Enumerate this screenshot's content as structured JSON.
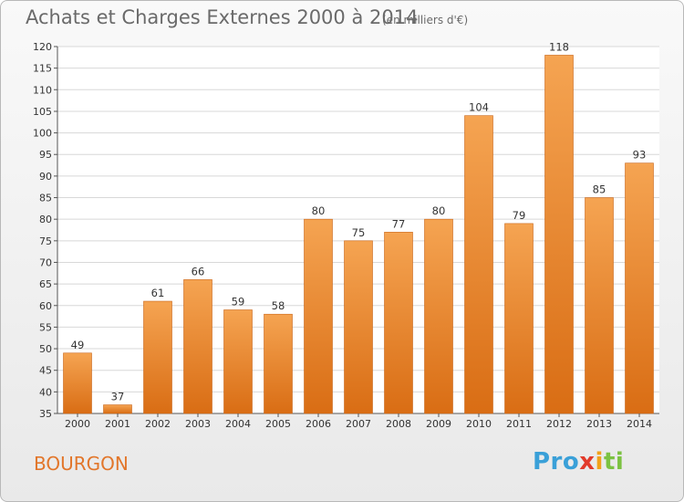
{
  "header": {
    "title": "Achats et Charges Externes 2000 à 2014",
    "unit": "(en milliers d'€)"
  },
  "footer": {
    "commune": "BOURGON",
    "logo": [
      "Pro",
      "x",
      "i",
      "ti"
    ]
  },
  "colors": {
    "bar_top": "#f5a452",
    "bar_bottom": "#d96d14",
    "title": "#6a6a6a",
    "commune": "#e2762a",
    "grid": "#d8d8d8"
  },
  "chart_data": {
    "type": "bar",
    "title": "Achats et Charges Externes 2000 à 2014",
    "subtitle": "(en milliers d'€)",
    "xlabel": "",
    "ylabel": "",
    "categories": [
      "2000",
      "2001",
      "2002",
      "2003",
      "2004",
      "2005",
      "2006",
      "2007",
      "2008",
      "2009",
      "2010",
      "2011",
      "2012",
      "2013",
      "2014"
    ],
    "values": [
      49,
      37,
      61,
      66,
      59,
      58,
      80,
      75,
      77,
      80,
      104,
      79,
      118,
      85,
      93
    ],
    "ylim": [
      35,
      120
    ],
    "yticks": [
      35,
      40,
      45,
      50,
      55,
      60,
      65,
      70,
      75,
      80,
      85,
      90,
      95,
      100,
      105,
      110,
      115,
      120
    ],
    "grid": true,
    "legend": "none"
  }
}
